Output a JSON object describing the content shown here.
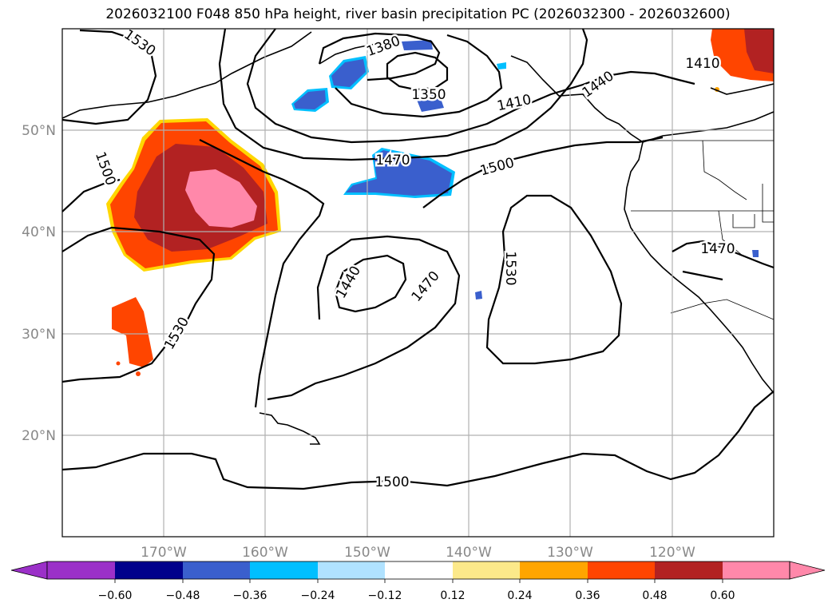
{
  "title": "2026032100 F048 850 hPa height, river basin precipitation PC (2026032300 - 2026032600)",
  "lat_labels": [
    "50°N",
    "40°N",
    "30°N",
    "20°N"
  ],
  "lon_labels": [
    "170°W",
    "160°W",
    "150°W",
    "140°W",
    "130°W",
    "120°W"
  ],
  "contour_labels": [
    "1530",
    "1380",
    "1350",
    "1410",
    "1440",
    "1410",
    "1500",
    "1470",
    "1500",
    "1440",
    "1470",
    "1530",
    "1530",
    "1470",
    "1500"
  ],
  "colorbar": {
    "ticks": [
      "−0.60",
      "−0.48",
      "−0.36",
      "−0.24",
      "−0.12",
      "0.12",
      "0.24",
      "0.36",
      "0.48",
      "0.60"
    ],
    "colors": [
      "#9b30c8",
      "#00008b",
      "#3a5fcd",
      "#00bfff",
      "#b0e2ff",
      "#ffffff",
      "#fce98a",
      "#ffa500",
      "#ff4500",
      "#b22222",
      "#ff88aa",
      "#ff88aa"
    ]
  },
  "colors": {
    "neg_blue": "#3a5fcd",
    "neg_cyan": "#00bfff",
    "pos_orange": "#ff4500",
    "pos_red": "#b22222",
    "pos_pink": "#ff88aa",
    "pos_gold": "#ffa500"
  }
}
